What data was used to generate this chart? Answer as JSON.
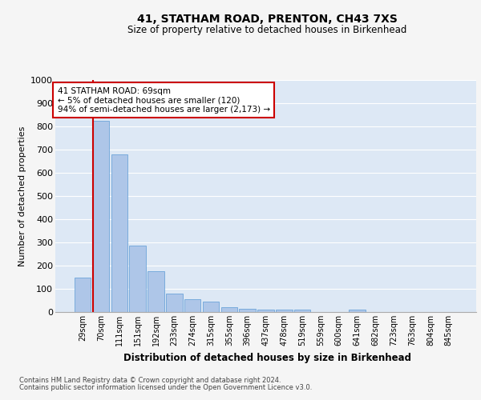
{
  "title1": "41, STATHAM ROAD, PRENTON, CH43 7XS",
  "title2": "Size of property relative to detached houses in Birkenhead",
  "xlabel": "Distribution of detached houses by size in Birkenhead",
  "ylabel": "Number of detached properties",
  "categories": [
    "29sqm",
    "70sqm",
    "111sqm",
    "151sqm",
    "192sqm",
    "233sqm",
    "274sqm",
    "315sqm",
    "355sqm",
    "396sqm",
    "437sqm",
    "478sqm",
    "519sqm",
    "559sqm",
    "600sqm",
    "641sqm",
    "682sqm",
    "723sqm",
    "763sqm",
    "804sqm",
    "845sqm"
  ],
  "values": [
    150,
    825,
    680,
    285,
    175,
    80,
    55,
    45,
    22,
    15,
    12,
    10,
    10,
    0,
    0,
    12,
    0,
    0,
    0,
    0,
    0
  ],
  "bar_color": "#aec6e8",
  "bar_edge_color": "#5b9bd5",
  "annotation_text": "41 STATHAM ROAD: 69sqm\n← 5% of detached houses are smaller (120)\n94% of semi-detached houses are larger (2,173) →",
  "annotation_box_color": "#ffffff",
  "annotation_box_edge": "#cc0000",
  "ylim": [
    0,
    1000
  ],
  "yticks": [
    0,
    100,
    200,
    300,
    400,
    500,
    600,
    700,
    800,
    900,
    1000
  ],
  "footer1": "Contains HM Land Registry data © Crown copyright and database right 2024.",
  "footer2": "Contains public sector information licensed under the Open Government Licence v3.0.",
  "bg_color": "#dde8f5",
  "grid_color": "#ffffff",
  "property_line_color": "#cc0000",
  "fig_bg_color": "#f5f5f5"
}
